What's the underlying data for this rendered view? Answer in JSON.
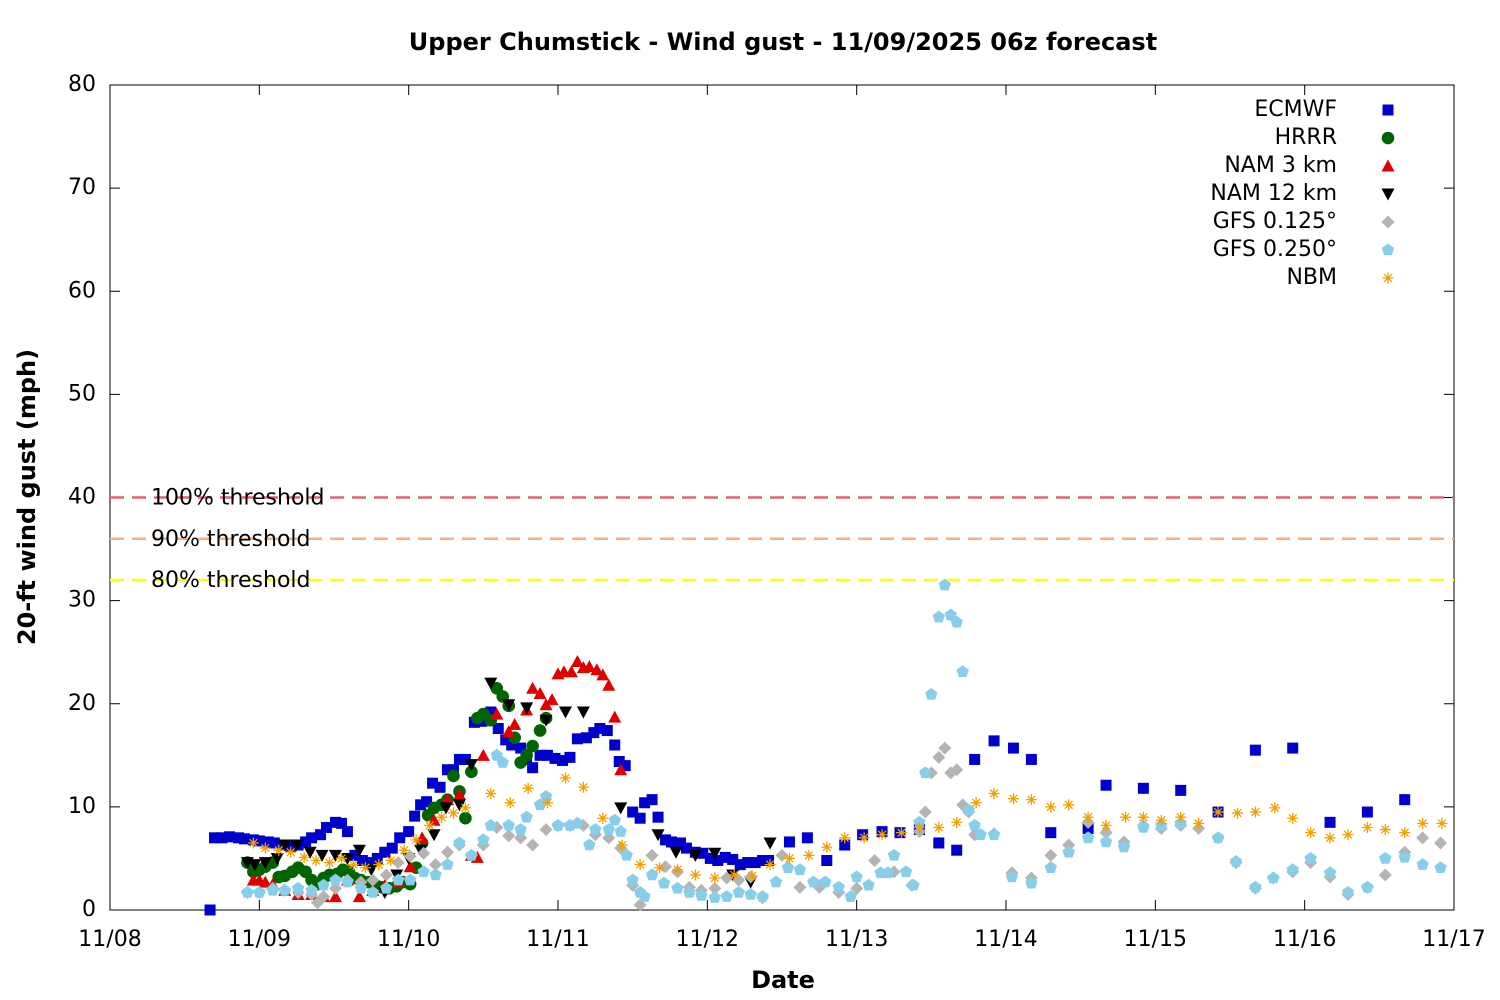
{
  "chart_data": {
    "type": "scatter",
    "title": "Upper Chumstick - Wind gust - 11/09/2025 06z forecast",
    "xlabel": "Date",
    "ylabel": "20-ft wind gust (mph)",
    "xlim": [
      0,
      9
    ],
    "xticks": [
      {
        "value": 0,
        "label": "11/08"
      },
      {
        "value": 1,
        "label": "11/09"
      },
      {
        "value": 2,
        "label": "11/10"
      },
      {
        "value": 3,
        "label": "11/11"
      },
      {
        "value": 4,
        "label": "11/12"
      },
      {
        "value": 5,
        "label": "11/13"
      },
      {
        "value": 6,
        "label": "11/14"
      },
      {
        "value": 7,
        "label": "11/15"
      },
      {
        "value": 8,
        "label": "11/16"
      },
      {
        "value": 9,
        "label": "11/17"
      }
    ],
    "ylim": [
      0,
      80
    ],
    "yticks": [
      0,
      10,
      20,
      30,
      40,
      50,
      60,
      70,
      80
    ],
    "legend": "top-right",
    "thresholds": [
      {
        "label": "100% threshold",
        "value": 40,
        "color": "#e06377"
      },
      {
        "label": "90% threshold",
        "value": 36,
        "color": "#f6b183"
      },
      {
        "label": "80% threshold",
        "value": 32,
        "color": "#ffff00"
      }
    ],
    "series": [
      {
        "name": "ECMWF",
        "color": "#0000cc",
        "marker": "square",
        "x": [
          0.67,
          0.7,
          0.75,
          0.8,
          0.86,
          0.9,
          0.96,
          1.0,
          1.06,
          1.1,
          1.16,
          1.21,
          1.26,
          1.31,
          1.35,
          1.41,
          1.45,
          1.51,
          1.55,
          1.59,
          1.64,
          1.69,
          1.74,
          1.79,
          1.84,
          1.89,
          1.94,
          2.0,
          2.04,
          2.08,
          2.12,
          2.16,
          2.21,
          2.26,
          2.3,
          2.34,
          2.38,
          2.44,
          2.49,
          2.55,
          2.6,
          2.65,
          2.69,
          2.75,
          2.79,
          2.83,
          2.88,
          2.93,
          2.98,
          3.03,
          3.08,
          3.13,
          3.19,
          3.24,
          3.28,
          3.33,
          3.38,
          3.41,
          3.45,
          3.5,
          3.55,
          3.58,
          3.63,
          3.67,
          3.72,
          3.76,
          3.82,
          3.86,
          3.92,
          3.97,
          4.02,
          4.07,
          4.12,
          4.17,
          4.22,
          4.27,
          4.32,
          4.37,
          4.41,
          4.55,
          4.67,
          4.8,
          4.92,
          5.04,
          5.17,
          5.29,
          5.42,
          5.55,
          5.67,
          5.79,
          5.92,
          6.05,
          6.17,
          6.3,
          6.55,
          6.67,
          6.92,
          7.17,
          7.42,
          7.67,
          7.92,
          8.17,
          8.42,
          8.67
        ],
        "values": [
          0,
          7.0,
          7,
          7.1,
          7,
          6.9,
          6.8,
          6.7,
          6.6,
          6.5,
          6.3,
          6.2,
          6.3,
          6.6,
          7.0,
          7.3,
          8.0,
          8.5,
          8.4,
          7.6,
          5.3,
          4.8,
          4.6,
          5.0,
          5.6,
          6.0,
          7.0,
          7.6,
          9.1,
          10.2,
          10.5,
          12.3,
          11.9,
          13.6,
          13.6,
          14.6,
          14.6,
          18.2,
          18.3,
          19.2,
          17.6,
          16.5,
          16.0,
          15.7,
          14.6,
          13.8,
          15.0,
          15.0,
          14.7,
          14.5,
          14.8,
          16.6,
          16.7,
          17.2,
          17.6,
          17.4,
          16.0,
          14.4,
          14.0,
          9.5,
          8.9,
          10.4,
          10.7,
          9.0,
          6.8,
          6.6,
          6.5,
          6.0,
          5.6,
          5.5,
          5.0,
          4.8,
          5.1,
          4.9,
          4.4,
          4.6,
          4.6,
          4.8,
          4.8,
          6.6,
          7.0,
          4.8,
          6.3,
          7.3,
          7.6,
          7.5,
          7.8,
          6.5,
          5.8,
          14.6,
          16.4,
          15.7,
          14.6,
          7.5,
          7.9,
          12.1,
          11.8,
          11.6,
          9.5,
          15.5,
          15.7,
          8.5,
          9.5,
          10.7
        ]
      },
      {
        "name": "HRRR",
        "color": "#006400",
        "marker": "circle",
        "x": [
          0.92,
          0.96,
          1.0,
          1.04,
          1.09,
          1.13,
          1.17,
          1.22,
          1.26,
          1.31,
          1.35,
          1.39,
          1.43,
          1.47,
          1.52,
          1.56,
          1.6,
          1.64,
          1.68,
          1.73,
          1.78,
          1.82,
          1.87,
          1.92,
          1.96,
          2.01,
          2.05,
          2.09,
          2.13,
          2.17,
          2.22,
          2.26,
          2.3,
          2.34,
          2.38,
          2.42,
          2.46,
          2.5,
          2.55,
          2.59,
          2.63,
          2.67,
          2.71,
          2.75,
          2.79,
          2.83,
          2.88,
          2.92
        ],
        "values": [
          4.6,
          3.7,
          3.9,
          4.2,
          4.6,
          3.2,
          3.3,
          3.7,
          4.1,
          3.7,
          2.9,
          2.5,
          3.1,
          3.4,
          3.5,
          3.9,
          3.7,
          3.1,
          2.9,
          2.7,
          2.4,
          2.2,
          2.1,
          2.3,
          2.7,
          2.5,
          4.1,
          6.5,
          9.2,
          9.9,
          10.2,
          10.7,
          13.0,
          11.5,
          8.9,
          13.4,
          18.6,
          19.0,
          18.4,
          21.5,
          20.7,
          19.8,
          16.7,
          14.3,
          15.0,
          15.9,
          17.4,
          18.6
        ]
      },
      {
        "name": "NAM 3 km",
        "color": "#e00000",
        "marker": "triangle-up",
        "x": [
          0.96,
          1.0,
          1.04,
          1.09,
          1.17,
          1.26,
          1.35,
          1.43,
          1.51,
          1.59,
          1.67,
          1.76,
          1.84,
          1.93,
          2.01,
          2.09,
          2.17,
          2.26,
          2.34,
          2.42,
          2.46,
          2.5,
          2.59,
          2.67,
          2.71,
          2.79,
          2.83,
          2.88,
          2.92,
          2.96,
          3.0,
          3.04,
          3.09,
          3.13,
          3.17,
          3.21,
          3.26,
          3.3,
          3.34,
          3.38,
          3.42
        ],
        "values": [
          2.9,
          2.9,
          2.7,
          2.5,
          1.9,
          1.5,
          1.5,
          1.3,
          1.3,
          2.9,
          1.3,
          1.9,
          2.4,
          2.7,
          4.2,
          7.0,
          8.7,
          10.7,
          11.2,
          5.3,
          5.1,
          15.0,
          19.0,
          17.3,
          18.0,
          19.4,
          21.5,
          21.0,
          19.9,
          20.4,
          22.9,
          23.1,
          23.1,
          24.1,
          23.5,
          23.6,
          23.3,
          22.8,
          21.8,
          18.7,
          13.6
        ]
      },
      {
        "name": "NAM 12 km",
        "color": "#000000",
        "marker": "triangle-down",
        "x": [
          0.92,
          0.97,
          1.04,
          1.12,
          1.17,
          1.25,
          1.34,
          1.42,
          1.51,
          1.59,
          1.67,
          1.75,
          1.84,
          1.92,
          2.0,
          2.08,
          2.17,
          2.25,
          2.34,
          2.42,
          2.55,
          2.67,
          2.79,
          2.92,
          3.05,
          3.17,
          3.42,
          3.67,
          3.79,
          3.92,
          4.05,
          4.17,
          4.29,
          4.42
        ],
        "values": [
          4.6,
          4.4,
          4.6,
          5.0,
          6.3,
          6.3,
          5.6,
          5.3,
          5.3,
          5.0,
          5.8,
          3.9,
          1.7,
          3.4,
          5.0,
          5.8,
          7.3,
          9.9,
          10.2,
          14.1,
          22.0,
          19.9,
          19.6,
          18.4,
          19.2,
          19.2,
          9.9,
          7.3,
          5.6,
          5.3,
          5.5,
          3.4,
          2.7,
          6.5
        ]
      },
      {
        "name": "GFS 0.125°",
        "color": "#b4b4b4",
        "marker": "diamond",
        "x": [
          0.92,
          1.0,
          1.09,
          1.17,
          1.26,
          1.35,
          1.39,
          1.43,
          1.51,
          1.59,
          1.68,
          1.76,
          1.85,
          1.93,
          2.01,
          2.1,
          2.18,
          2.26,
          2.34,
          2.42,
          2.5,
          2.59,
          2.67,
          2.75,
          2.83,
          2.92,
          3.0,
          3.08,
          3.17,
          3.25,
          3.34,
          3.42,
          3.5,
          3.55,
          3.63,
          3.72,
          3.8,
          3.88,
          3.96,
          4.05,
          4.13,
          4.21,
          4.29,
          4.37,
          4.5,
          4.62,
          4.75,
          4.88,
          5.0,
          5.12,
          5.25,
          5.37,
          5.42,
          5.46,
          5.5,
          5.55,
          5.59,
          5.63,
          5.67,
          5.71,
          5.75,
          5.79,
          5.92,
          6.04,
          6.17,
          6.3,
          6.42,
          6.55,
          6.67,
          6.79,
          6.92,
          7.04,
          7.17,
          7.29,
          7.42,
          7.54,
          7.67,
          7.79,
          7.92,
          8.04,
          8.17,
          8.29,
          8.42,
          8.54,
          8.67,
          8.79,
          8.91
        ],
        "values": [
          1.7,
          1.7,
          2.1,
          1.9,
          1.7,
          1.5,
          0.7,
          1.3,
          2.1,
          2.9,
          2.7,
          2.9,
          3.4,
          4.6,
          5.2,
          5.5,
          4.4,
          5.6,
          6.3,
          5.3,
          6.3,
          8.0,
          7.2,
          7.0,
          6.3,
          7.8,
          8.2,
          8.2,
          8.2,
          7.3,
          7.0,
          6.0,
          2.4,
          0.5,
          5.3,
          4.2,
          3.7,
          2.2,
          1.9,
          2.1,
          3.1,
          2.9,
          3.2,
          1.2,
          5.3,
          2.2,
          2.2,
          1.7,
          2.1,
          4.8,
          3.7,
          2.4,
          7.6,
          9.5,
          13.3,
          14.8,
          15.7,
          13.3,
          13.6,
          10.2,
          9.5,
          7.3,
          7.4,
          3.6,
          3.1,
          5.3,
          6.3,
          8.5,
          7.5,
          6.6,
          8.2,
          7.9,
          8.2,
          7.9,
          7.0,
          4.6,
          2.1,
          3.1,
          3.7,
          4.6,
          3.2,
          1.5,
          2.2,
          3.4,
          5.6,
          7.0,
          6.5
        ]
      },
      {
        "name": "GFS 0.250°",
        "color": "#87ceeb",
        "marker": "pentagon",
        "x": [
          0.92,
          1.0,
          1.09,
          1.17,
          1.26,
          1.35,
          1.43,
          1.51,
          1.59,
          1.68,
          1.76,
          1.85,
          1.93,
          2.01,
          2.1,
          2.18,
          2.26,
          2.34,
          2.42,
          2.5,
          2.55,
          2.59,
          2.63,
          2.67,
          2.75,
          2.79,
          2.88,
          2.92,
          3.0,
          3.08,
          3.13,
          3.21,
          3.25,
          3.34,
          3.38,
          3.42,
          3.46,
          3.5,
          3.55,
          3.58,
          3.63,
          3.71,
          3.8,
          3.88,
          3.96,
          4.05,
          4.13,
          4.21,
          4.29,
          4.37,
          4.46,
          4.54,
          4.62,
          4.71,
          4.79,
          4.88,
          4.96,
          5.0,
          5.08,
          5.16,
          5.21,
          5.25,
          5.33,
          5.38,
          5.42,
          5.46,
          5.5,
          5.55,
          5.59,
          5.63,
          5.67,
          5.71,
          5.75,
          5.79,
          5.83,
          5.92,
          6.04,
          6.17,
          6.3,
          6.42,
          6.55,
          6.67,
          6.79,
          6.92,
          7.04,
          7.17,
          7.42,
          7.54,
          7.67,
          7.79,
          7.92,
          8.04,
          8.17,
          8.29,
          8.42,
          8.54,
          8.67,
          8.79,
          8.91
        ],
        "values": [
          1.7,
          1.7,
          1.9,
          1.9,
          2.1,
          1.9,
          2.4,
          2.9,
          2.7,
          2.1,
          1.7,
          2.1,
          2.9,
          2.9,
          3.7,
          3.4,
          4.4,
          6.5,
          5.3,
          6.8,
          8.2,
          15.0,
          14.3,
          8.2,
          7.8,
          9.0,
          10.2,
          11.0,
          8.2,
          8.2,
          8.4,
          6.3,
          7.8,
          7.8,
          8.7,
          7.6,
          5.3,
          2.9,
          1.7,
          1.3,
          3.4,
          2.6,
          2.1,
          1.7,
          1.4,
          1.2,
          1.3,
          1.7,
          1.5,
          1.3,
          2.7,
          4.1,
          3.9,
          2.7,
          2.7,
          2.2,
          1.3,
          3.2,
          2.4,
          3.6,
          3.6,
          5.3,
          3.7,
          2.4,
          8.5,
          13.3,
          20.9,
          28.4,
          31.5,
          28.6,
          27.9,
          23.1,
          9.7,
          8.2,
          7.3,
          7.3,
          3.2,
          2.6,
          4.1,
          5.6,
          7.0,
          6.6,
          6.1,
          8.0,
          8.2,
          8.4,
          7.0,
          4.7,
          2.2,
          3.1,
          3.9,
          5.0,
          3.6,
          1.7,
          2.2,
          5.0,
          5.1,
          4.4,
          4.1
        ]
      },
      {
        "name": "NBM",
        "color": "#f0a000",
        "marker": "asterisk",
        "x": [
          0.96,
          1.04,
          1.13,
          1.21,
          1.3,
          1.38,
          1.47,
          1.55,
          1.63,
          1.71,
          1.8,
          1.88,
          1.97,
          2.05,
          2.14,
          2.22,
          2.3,
          2.38,
          2.55,
          2.68,
          2.8,
          2.93,
          3.05,
          3.17,
          3.3,
          3.43,
          3.55,
          3.68,
          3.8,
          3.92,
          4.05,
          4.18,
          4.3,
          4.42,
          4.55,
          4.68,
          4.8,
          4.92,
          5.05,
          5.17,
          5.3,
          5.42,
          5.55,
          5.67,
          5.8,
          5.92,
          6.05,
          6.17,
          6.3,
          6.42,
          6.55,
          6.67,
          6.8,
          6.92,
          7.04,
          7.17,
          7.29,
          7.42,
          7.55,
          7.67,
          7.8,
          7.92,
          8.04,
          8.17,
          8.29,
          8.42,
          8.54,
          8.67,
          8.79,
          8.92
        ],
        "values": [
          6.5,
          6.0,
          5.8,
          5.6,
          5.1,
          4.8,
          4.6,
          5.0,
          4.4,
          4.1,
          4.4,
          4.8,
          5.8,
          6.8,
          8.2,
          9.0,
          9.4,
          9.9,
          11.3,
          10.4,
          11.8,
          10.4,
          12.8,
          11.9,
          8.9,
          6.3,
          4.4,
          4.1,
          3.9,
          3.4,
          3.1,
          3.4,
          3.3,
          4.4,
          5.0,
          5.3,
          6.1,
          7.0,
          7.0,
          7.3,
          7.5,
          8.0,
          8.0,
          8.5,
          10.4,
          11.3,
          10.8,
          10.7,
          10.0,
          10.2,
          9.0,
          8.2,
          9.0,
          9.0,
          8.7,
          9.0,
          8.4,
          9.5,
          9.4,
          9.5,
          9.9,
          8.9,
          7.5,
          7.0,
          7.3,
          8.0,
          7.8,
          7.5,
          8.4,
          8.4
        ]
      }
    ]
  }
}
